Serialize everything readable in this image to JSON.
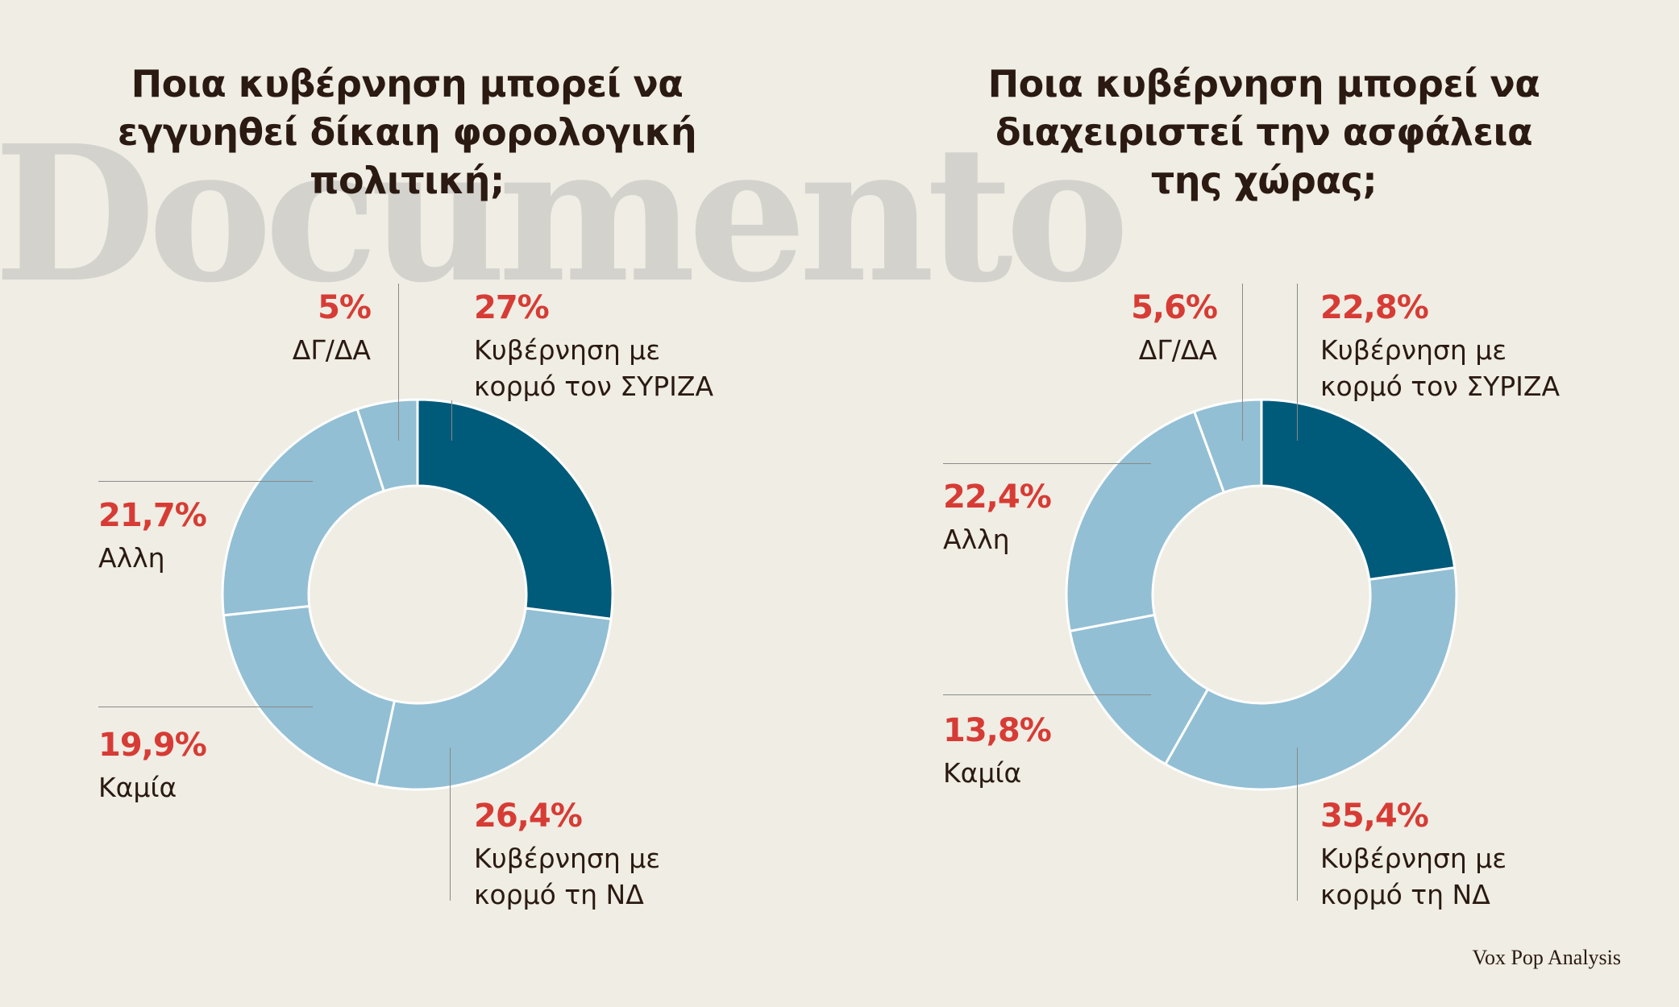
{
  "watermark": "Documento",
  "source": "Vox Pop Analysis",
  "colors": {
    "highlight": "#005a7a",
    "slice": "#92bfd4",
    "accent": "#d63c35",
    "text": "#2a1a12",
    "background": "#efede4"
  },
  "chart_data": [
    {
      "type": "pie",
      "title": "Ποια κυβέρνηση μπορεί να εγγυηθεί δίκαιη φορολογική πολιτική;",
      "slices": [
        {
          "label": "Κυβέρνηση με κορμό τον ΣΥΡΙΖΑ",
          "value": 27,
          "display": "27%"
        },
        {
          "label": "Κυβέρνηση με κορμό τη ΝΔ",
          "value": 26.4,
          "display": "26,4%"
        },
        {
          "label": "Καμία",
          "value": 19.9,
          "display": "19,9%"
        },
        {
          "label": "Αλλη",
          "value": 21.7,
          "display": "21,7%"
        },
        {
          "label": "ΔΓ/ΔΑ",
          "value": 5,
          "display": "5%"
        }
      ]
    },
    {
      "type": "pie",
      "title": "Ποια κυβέρνηση μπορεί να διαχειριστεί την ασφάλεια της χώρας;",
      "slices": [
        {
          "label": "Κυβέρνηση με κορμό τον ΣΥΡΙΖΑ",
          "value": 22.8,
          "display": "22,8%"
        },
        {
          "label": "Κυβέρνηση με κορμό τη ΝΔ",
          "value": 35.4,
          "display": "35,4%"
        },
        {
          "label": "Καμία",
          "value": 13.8,
          "display": "13,8%"
        },
        {
          "label": "Αλλη",
          "value": 22.4,
          "display": "22,4%"
        },
        {
          "label": "ΔΓ/ΔΑ",
          "value": 5.6,
          "display": "5,6%"
        }
      ]
    }
  ]
}
